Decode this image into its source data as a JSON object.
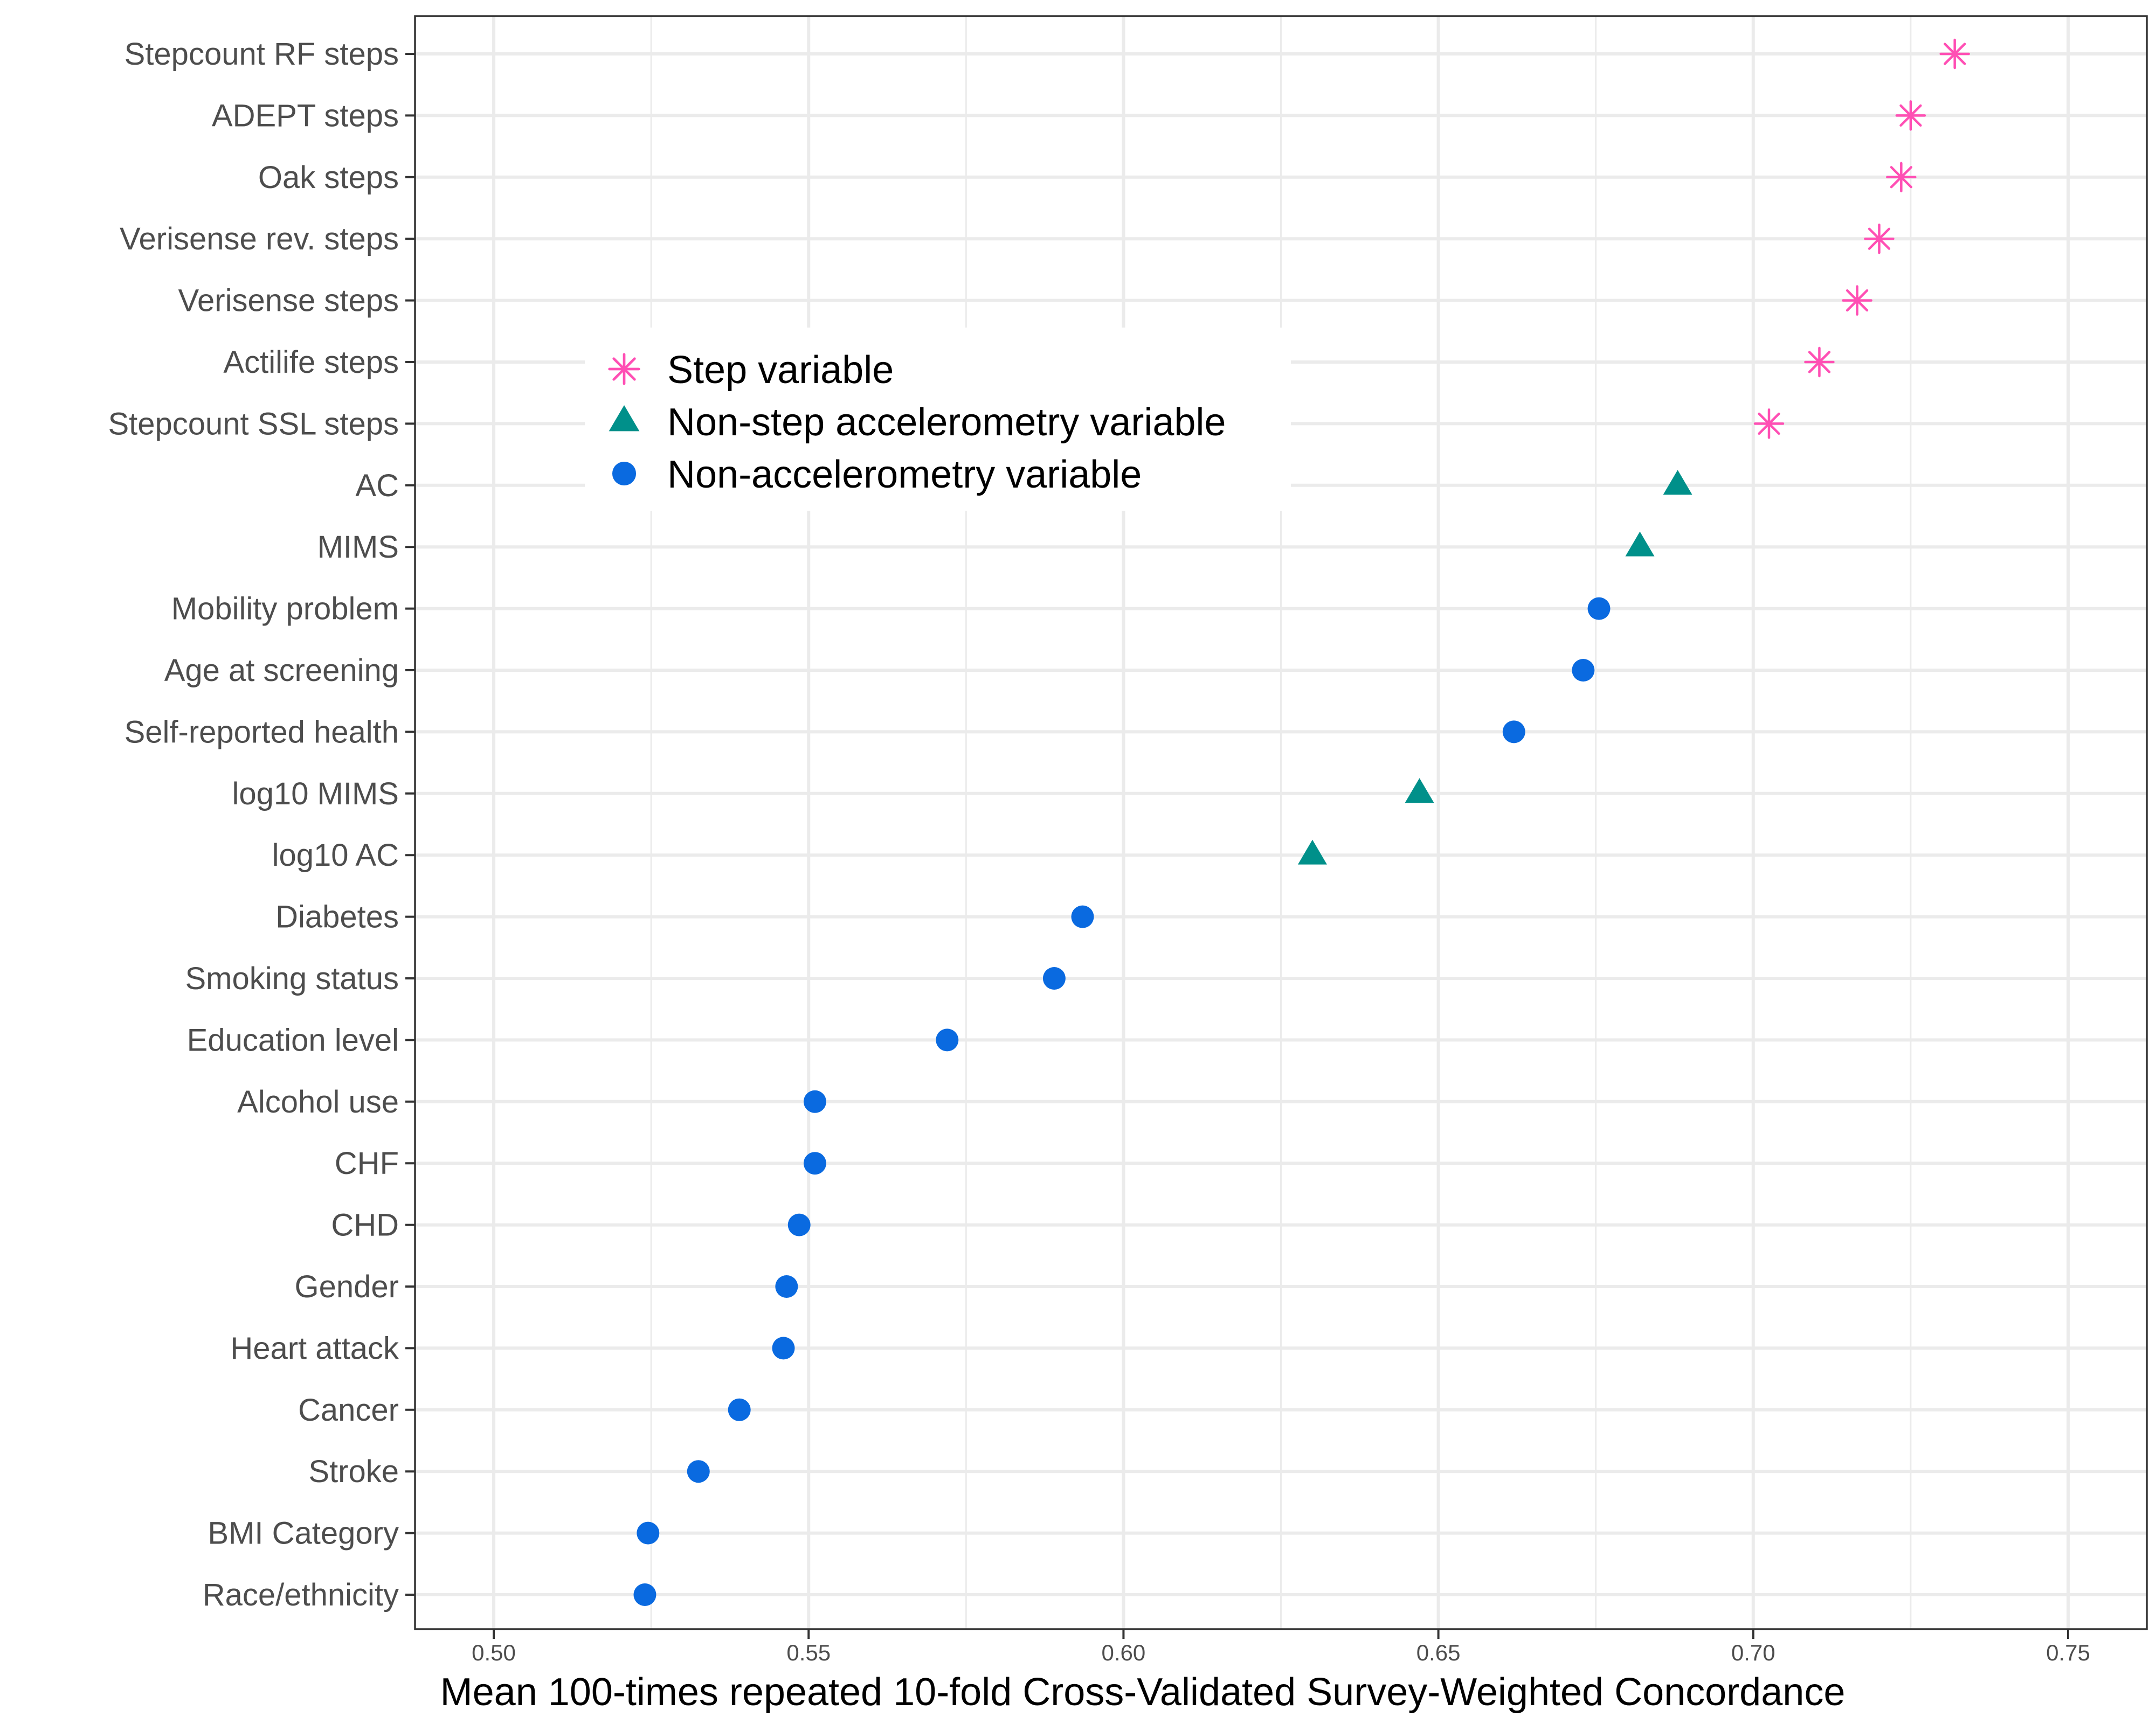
{
  "chart_data": {
    "type": "scatter",
    "xlabel": "Mean 100-times repeated 10-fold Cross-Validated Survey-Weighted Concordance",
    "ylabel": "",
    "xlim": [
      0.4875,
      0.7625
    ],
    "x_ticks": [
      "0.50",
      "0.55",
      "0.60",
      "0.65",
      "0.70",
      "0.75"
    ],
    "x_tick_values": [
      0.5,
      0.55,
      0.6,
      0.65,
      0.7,
      0.75
    ],
    "grid": true,
    "legend_position": "upper-left inside plot",
    "categories": [
      "Stepcount RF steps",
      "ADEPT steps",
      "Oak steps",
      "Verisense rev. steps",
      "Verisense steps",
      "Actilife steps",
      "Stepcount SSL steps",
      "AC",
      "MIMS",
      "Mobility problem",
      "Age at screening",
      "Self-reported health",
      "log10 MIMS",
      "log10 AC",
      "Diabetes",
      "Smoking status",
      "Education level",
      "Alcohol use",
      "CHF",
      "CHD",
      "Gender",
      "Heart attack",
      "Cancer",
      "Stroke",
      "BMI Category",
      "Race/ethnicity"
    ],
    "series": [
      {
        "name": "Step variable",
        "color": "#ff4fb4",
        "marker": "asterisk",
        "points": [
          {
            "label": "Stepcount RF steps",
            "x": 0.732
          },
          {
            "label": "ADEPT steps",
            "x": 0.725
          },
          {
            "label": "Oak steps",
            "x": 0.7235
          },
          {
            "label": "Verisense rev. steps",
            "x": 0.72
          },
          {
            "label": "Verisense steps",
            "x": 0.7165
          },
          {
            "label": "Actilife steps",
            "x": 0.7105
          },
          {
            "label": "Stepcount SSL steps",
            "x": 0.7025
          }
        ]
      },
      {
        "name": "Non-step accelerometry variable",
        "color": "#00908a",
        "marker": "triangle",
        "points": [
          {
            "label": "AC",
            "x": 0.688
          },
          {
            "label": "MIMS",
            "x": 0.682
          },
          {
            "label": "log10 MIMS",
            "x": 0.647
          },
          {
            "label": "log10 AC",
            "x": 0.63
          }
        ]
      },
      {
        "name": "Non-accelerometry variable",
        "color": "#0a6ae0",
        "marker": "circle",
        "points": [
          {
            "label": "Mobility problem",
            "x": 0.6755
          },
          {
            "label": "Age at screening",
            "x": 0.673
          },
          {
            "label": "Self-reported health",
            "x": 0.662
          },
          {
            "label": "Diabetes",
            "x": 0.5935
          },
          {
            "label": "Smoking status",
            "x": 0.589
          },
          {
            "label": "Education level",
            "x": 0.572
          },
          {
            "label": "Alcohol use",
            "x": 0.551
          },
          {
            "label": "CHF",
            "x": 0.551
          },
          {
            "label": "CHD",
            "x": 0.5485
          },
          {
            "label": "Gender",
            "x": 0.5465
          },
          {
            "label": "Heart attack",
            "x": 0.546
          },
          {
            "label": "Cancer",
            "x": 0.539
          },
          {
            "label": "Stroke",
            "x": 0.5325
          },
          {
            "label": "BMI Category",
            "x": 0.5245
          },
          {
            "label": "Race/ethnicity",
            "x": 0.524
          }
        ]
      }
    ]
  }
}
